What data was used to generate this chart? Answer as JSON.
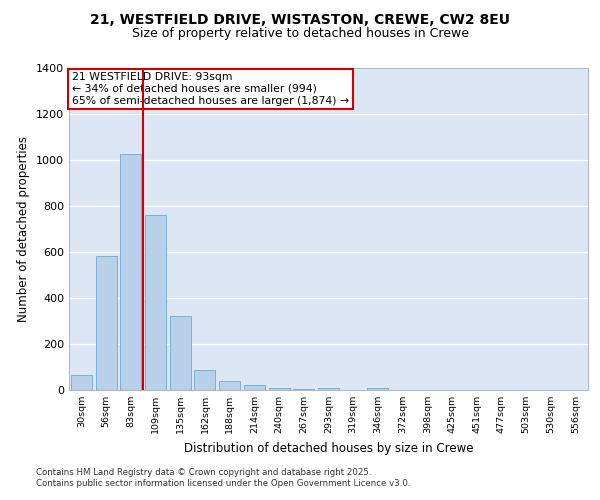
{
  "title_line1": "21, WESTFIELD DRIVE, WISTASTON, CREWE, CW2 8EU",
  "title_line2": "Size of property relative to detached houses in Crewe",
  "xlabel": "Distribution of detached houses by size in Crewe",
  "ylabel": "Number of detached properties",
  "categories": [
    "30sqm",
    "56sqm",
    "83sqm",
    "109sqm",
    "135sqm",
    "162sqm",
    "188sqm",
    "214sqm",
    "240sqm",
    "267sqm",
    "293sqm",
    "319sqm",
    "346sqm",
    "372sqm",
    "398sqm",
    "425sqm",
    "451sqm",
    "477sqm",
    "503sqm",
    "530sqm",
    "556sqm"
  ],
  "values": [
    65,
    580,
    1025,
    760,
    320,
    85,
    40,
    22,
    8,
    5,
    10,
    0,
    10,
    0,
    0,
    0,
    0,
    0,
    0,
    0,
    0
  ],
  "bar_color": "#b8d0ea",
  "bar_edge_color": "#7aafd4",
  "vline_color": "#cc0000",
  "vline_x": 2.5,
  "annotation_text": "21 WESTFIELD DRIVE: 93sqm\n← 34% of detached houses are smaller (994)\n65% of semi-detached houses are larger (1,874) →",
  "annotation_box_facecolor": "#ffffff",
  "annotation_box_edgecolor": "#cc0000",
  "ylim": [
    0,
    1400
  ],
  "yticks": [
    0,
    200,
    400,
    600,
    800,
    1000,
    1200,
    1400
  ],
  "background_color": "#dce6f5",
  "footer_line1": "Contains HM Land Registry data © Crown copyright and database right 2025.",
  "footer_line2": "Contains public sector information licensed under the Open Government Licence v3.0."
}
